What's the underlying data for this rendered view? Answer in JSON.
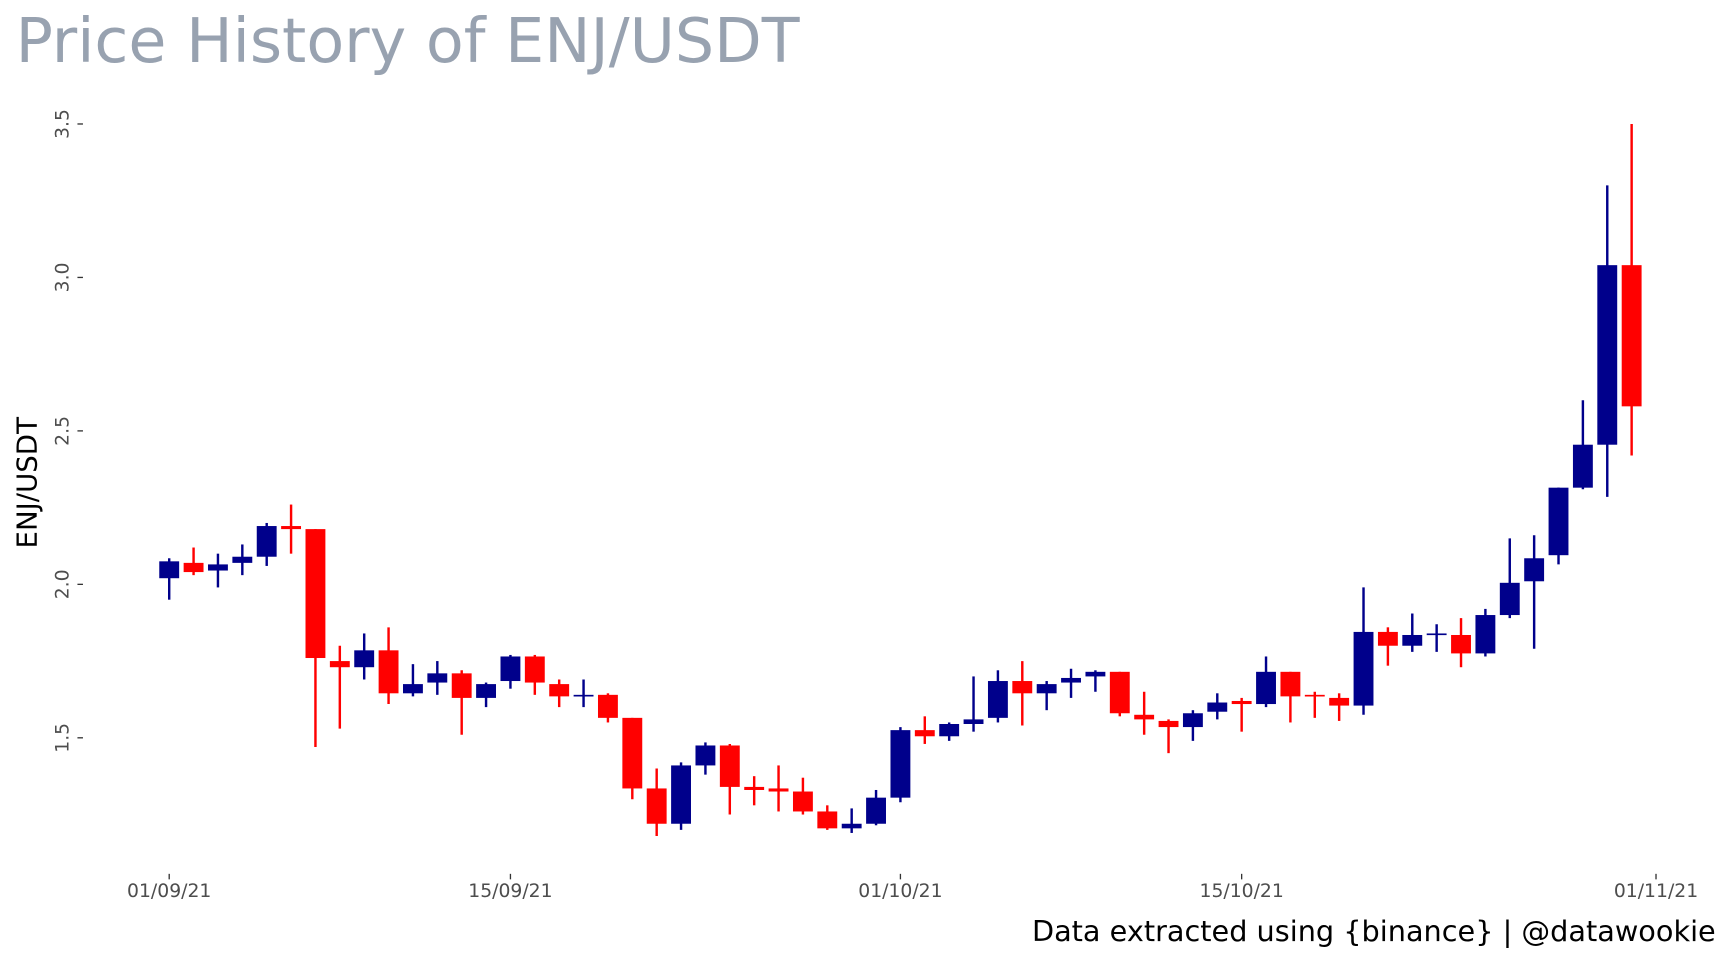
{
  "chart_data": {
    "type": "candlestick",
    "title": "Price History of ENJ/USDT",
    "y_label": "ENJ/USDT",
    "caption": "Data extracted using {binance} | @datawookie",
    "up_color": "#00008B",
    "down_color": "#FF0000",
    "x": [
      "2021-09-01",
      "2021-09-02",
      "2021-09-03",
      "2021-09-04",
      "2021-09-05",
      "2021-09-06",
      "2021-09-07",
      "2021-09-08",
      "2021-09-09",
      "2021-09-10",
      "2021-09-11",
      "2021-09-12",
      "2021-09-13",
      "2021-09-14",
      "2021-09-15",
      "2021-09-16",
      "2021-09-17",
      "2021-09-18",
      "2021-09-19",
      "2021-09-20",
      "2021-09-21",
      "2021-09-22",
      "2021-09-23",
      "2021-09-24",
      "2021-09-25",
      "2021-09-26",
      "2021-09-27",
      "2021-09-28",
      "2021-09-29",
      "2021-09-30",
      "2021-10-01",
      "2021-10-02",
      "2021-10-03",
      "2021-10-04",
      "2021-10-05",
      "2021-10-06",
      "2021-10-07",
      "2021-10-08",
      "2021-10-09",
      "2021-10-10",
      "2021-10-11",
      "2021-10-12",
      "2021-10-13",
      "2021-10-14",
      "2021-10-15",
      "2021-10-16",
      "2021-10-17",
      "2021-10-18",
      "2021-10-19",
      "2021-10-20",
      "2021-10-21",
      "2021-10-22",
      "2021-10-23",
      "2021-10-24",
      "2021-10-25",
      "2021-10-26",
      "2021-10-27",
      "2021-10-28",
      "2021-10-29",
      "2021-10-30",
      "2021-10-31"
    ],
    "open": [
      2.02,
      2.07,
      2.045,
      2.07,
      2.09,
      2.19,
      2.18,
      1.75,
      1.73,
      1.785,
      1.645,
      1.68,
      1.71,
      1.63,
      1.685,
      1.765,
      1.675,
      1.635,
      1.64,
      1.565,
      1.335,
      1.22,
      1.41,
      1.475,
      1.34,
      1.335,
      1.325,
      1.26,
      1.205,
      1.22,
      1.305,
      1.525,
      1.505,
      1.545,
      1.565,
      1.685,
      1.645,
      1.68,
      1.7,
      1.715,
      1.575,
      1.555,
      1.535,
      1.585,
      1.62,
      1.61,
      1.715,
      1.64,
      1.63,
      1.605,
      1.845,
      1.8,
      1.835,
      1.835,
      1.775,
      1.9,
      2.01,
      2.095,
      2.315,
      2.455,
      3.04
    ],
    "high": [
      2.085,
      2.12,
      2.1,
      2.13,
      2.2,
      2.26,
      2.18,
      1.8,
      1.84,
      1.86,
      1.74,
      1.75,
      1.72,
      1.68,
      1.77,
      1.77,
      1.69,
      1.69,
      1.645,
      1.565,
      1.4,
      1.42,
      1.485,
      1.48,
      1.375,
      1.41,
      1.37,
      1.28,
      1.27,
      1.33,
      1.535,
      1.57,
      1.55,
      1.7,
      1.72,
      1.75,
      1.685,
      1.725,
      1.72,
      1.715,
      1.65,
      1.56,
      1.59,
      1.645,
      1.63,
      1.765,
      1.715,
      1.65,
      1.645,
      1.99,
      1.86,
      1.905,
      1.87,
      1.89,
      1.92,
      2.15,
      2.16,
      2.315,
      2.6,
      3.3,
      3.5
    ],
    "low": [
      1.95,
      2.03,
      1.99,
      2.03,
      2.06,
      2.1,
      1.47,
      1.53,
      1.69,
      1.61,
      1.635,
      1.64,
      1.51,
      1.6,
      1.66,
      1.64,
      1.6,
      1.6,
      1.55,
      1.3,
      1.18,
      1.2,
      1.38,
      1.25,
      1.28,
      1.26,
      1.25,
      1.2,
      1.19,
      1.215,
      1.29,
      1.48,
      1.49,
      1.52,
      1.55,
      1.54,
      1.59,
      1.63,
      1.65,
      1.57,
      1.51,
      1.45,
      1.49,
      1.56,
      1.52,
      1.6,
      1.55,
      1.565,
      1.555,
      1.575,
      1.735,
      1.78,
      1.78,
      1.73,
      1.765,
      1.89,
      1.79,
      2.065,
      2.31,
      2.285,
      2.42
    ],
    "close": [
      2.075,
      2.04,
      2.065,
      2.09,
      2.19,
      2.18,
      1.76,
      1.73,
      1.785,
      1.645,
      1.675,
      1.71,
      1.63,
      1.675,
      1.765,
      1.68,
      1.635,
      1.64,
      1.565,
      1.335,
      1.22,
      1.41,
      1.475,
      1.34,
      1.33,
      1.325,
      1.26,
      1.205,
      1.22,
      1.305,
      1.525,
      1.505,
      1.545,
      1.56,
      1.685,
      1.645,
      1.675,
      1.695,
      1.715,
      1.58,
      1.56,
      1.535,
      1.58,
      1.615,
      1.61,
      1.715,
      1.635,
      1.638,
      1.605,
      1.845,
      1.8,
      1.835,
      1.84,
      1.775,
      1.9,
      2.005,
      2.085,
      2.315,
      2.455,
      3.04,
      2.58
    ],
    "xlim": [
      "2021-08-31",
      "2021-11-02"
    ],
    "xticks": [
      {
        "value": "2021-09-01",
        "label": "01/09/21"
      },
      {
        "value": "2021-09-15",
        "label": "15/09/21"
      },
      {
        "value": "2021-10-01",
        "label": "01/10/21"
      },
      {
        "value": "2021-10-15",
        "label": "15/10/21"
      },
      {
        "value": "2021-11-01",
        "label": "01/11/21"
      }
    ],
    "ylim": [
      1.064,
      3.616
    ],
    "yticks": [
      1.5,
      {
        "value": 2.0,
        "label": "2.0"
      },
      2.5,
      {
        "value": 3.0,
        "label": "3.0"
      },
      3.5
    ],
    "grid": false
  }
}
